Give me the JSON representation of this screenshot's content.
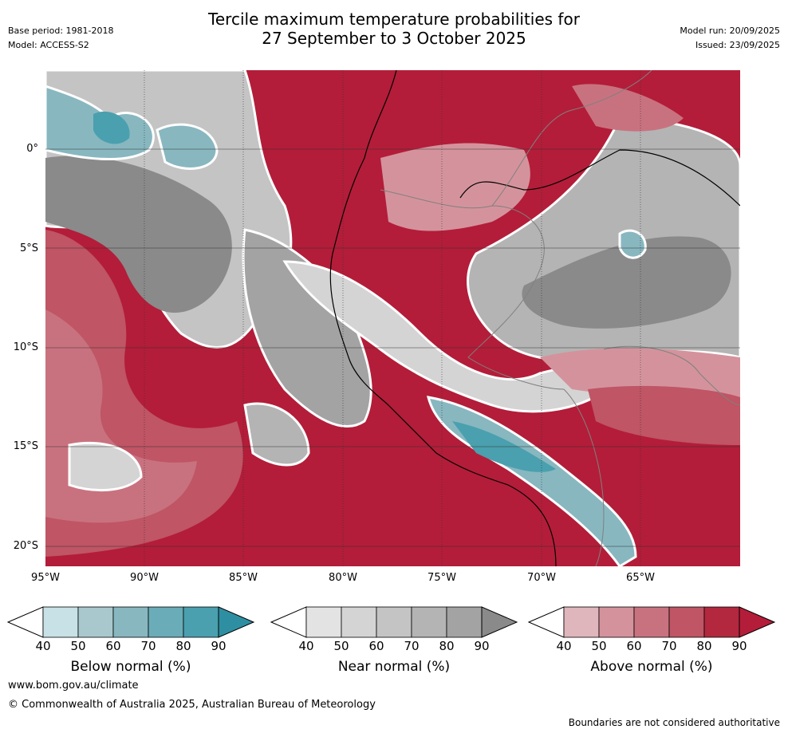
{
  "title": {
    "line1": "Tercile maximum temperature probabilities for",
    "line2": "27 September to 3 October 2025"
  },
  "meta_left": {
    "base_period": "Base period: 1981-2018",
    "model": "Model: ACCESS-S2"
  },
  "meta_right": {
    "model_run": "Model run: 20/09/2025",
    "issued": "Issued: 23/09/2025"
  },
  "map": {
    "lat_labels": [
      "0°",
      "5°S",
      "10°S",
      "15°S",
      "20°S"
    ],
    "lon_labels": [
      "95°W",
      "90°W",
      "85°W",
      "80°W",
      "75°W",
      "70°W",
      "65°W"
    ],
    "colors": {
      "above": [
        "#dfb6bb",
        "#d4939c",
        "#c9727f",
        "#bf5565",
        "#b3283f",
        "#b31d39"
      ],
      "near": [
        "#e3e3e3",
        "#d4d4d4",
        "#c4c4c4",
        "#b4b4b4",
        "#a3a3a3",
        "#8a8a8a"
      ],
      "below": [
        "#c7e1e6",
        "#a8c8cd",
        "#88b7c0",
        "#6aacb8",
        "#4aa0ae",
        "#2f8fa2"
      ]
    }
  },
  "colorbars": [
    {
      "label": "Below normal (%)",
      "ticks": [
        "40",
        "50",
        "60",
        "70",
        "80",
        "90"
      ],
      "colors": [
        "#c7e1e6",
        "#a8c8cd",
        "#88b7c0",
        "#6aacb8",
        "#4aa0ae",
        "#2f8fa2"
      ]
    },
    {
      "label": "Near normal (%)",
      "ticks": [
        "40",
        "50",
        "60",
        "70",
        "80",
        "90"
      ],
      "colors": [
        "#e3e3e3",
        "#d4d4d4",
        "#c4c4c4",
        "#b4b4b4",
        "#a3a3a3",
        "#8a8a8a"
      ]
    },
    {
      "label": "Above normal (%)",
      "ticks": [
        "40",
        "50",
        "60",
        "70",
        "80",
        "90"
      ],
      "colors": [
        "#dfb6bb",
        "#d4939c",
        "#c9727f",
        "#bf5565",
        "#b3283f",
        "#b31d39"
      ]
    }
  ],
  "footer": {
    "website": "www.bom.gov.au/climate",
    "copyright": "© Commonwealth of Australia 2025, Australian Bureau of Meteorology",
    "disclaimer": "Boundaries are not considered authoritative"
  }
}
